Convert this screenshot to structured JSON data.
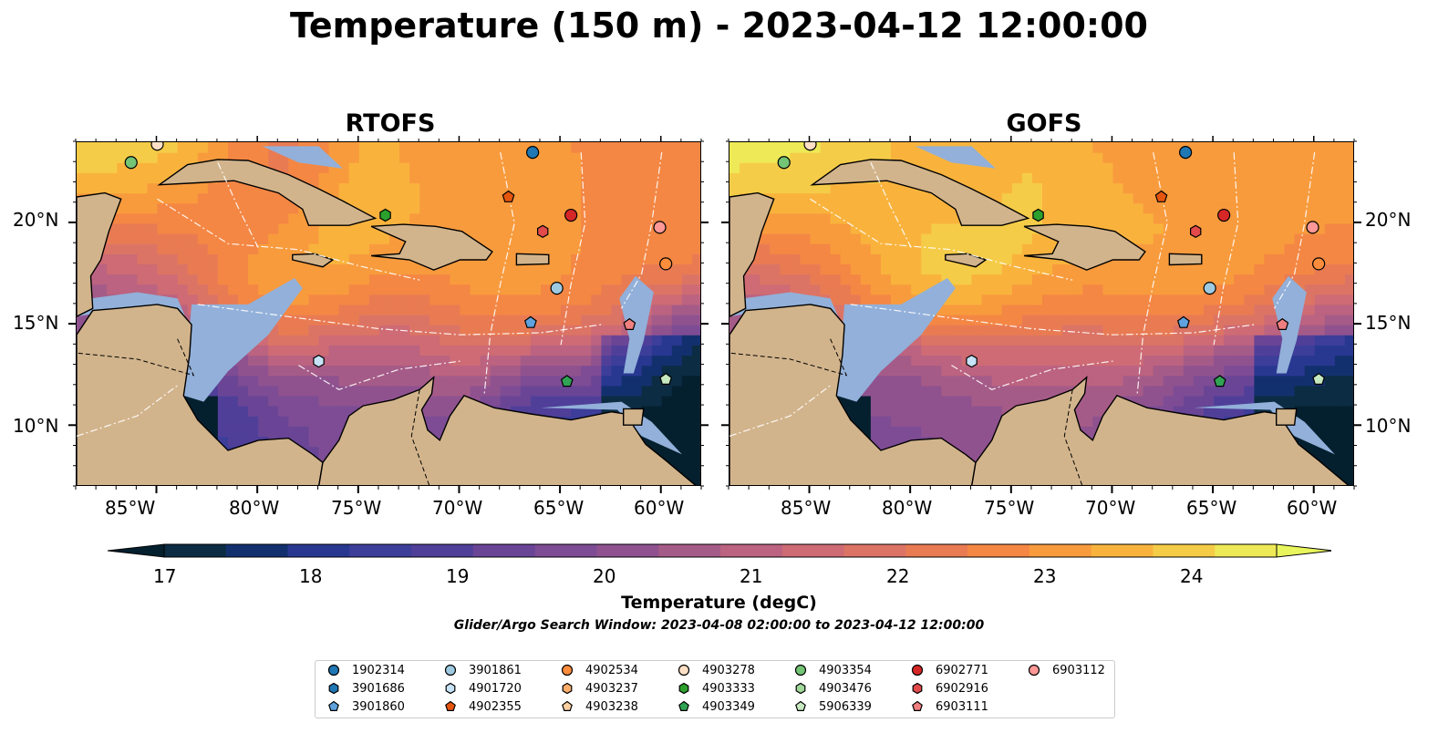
{
  "title": "Temperature (150 m) - 2023-04-12 12:00:00",
  "panels": [
    {
      "title": "RTOFS"
    },
    {
      "title": "GOFS"
    }
  ],
  "axes": {
    "lon_ticks": [
      "85°W",
      "80°W",
      "75°W",
      "70°W",
      "65°W",
      "60°W"
    ],
    "lat_ticks": [
      "20°N",
      "15°N",
      "10°N"
    ],
    "lon_range": [
      -89,
      -58
    ],
    "lat_range": [
      7,
      24
    ]
  },
  "colorbar": {
    "label": "Temperature (degC)",
    "ticks": [
      "17",
      "18",
      "19",
      "20",
      "21",
      "22",
      "23",
      "24"
    ],
    "range": [
      16.75,
      24.5
    ],
    "colors": [
      "#0c2c43",
      "#13306e",
      "#283891",
      "#3c3e9a",
      "#503f99",
      "#6a4596",
      "#7d4c94",
      "#8f528f",
      "#a55b88",
      "#bb6380",
      "#ce6b74",
      "#dc7465",
      "#e97b53",
      "#f48744",
      "#f89b3d",
      "#f9b33d",
      "#f5cc48",
      "#eee956"
    ],
    "under_color": "#04202f",
    "over_color": "#e8f55c"
  },
  "search_window": "Glider/Argo Search Window: 2023-04-08 02:00:00 to 2023-04-12 12:00:00",
  "legend": {
    "items": [
      {
        "label": "1902314",
        "color": "#1f77b4",
        "marker": "circle"
      },
      {
        "label": "3901686",
        "color": "#1f77b4",
        "marker": "hexagon"
      },
      {
        "label": "3901860",
        "color": "#5fa2dd",
        "marker": "pentagon"
      },
      {
        "label": "3901861",
        "color": "#9ecae1",
        "marker": "circle"
      },
      {
        "label": "4901720",
        "color": "#c6e3f7",
        "marker": "hexagon"
      },
      {
        "label": "4902355",
        "color": "#e6550d",
        "marker": "pentagon"
      },
      {
        "label": "4902534",
        "color": "#fd8d3c",
        "marker": "circle"
      },
      {
        "label": "4903237",
        "color": "#fdae6b",
        "marker": "hexagon"
      },
      {
        "label": "4903238",
        "color": "#fdd0a2",
        "marker": "pentagon"
      },
      {
        "label": "4903278",
        "color": "#fde0c5",
        "marker": "circle"
      },
      {
        "label": "4903333",
        "color": "#2ca02c",
        "marker": "hexagon"
      },
      {
        "label": "4903349",
        "color": "#31a354",
        "marker": "pentagon"
      },
      {
        "label": "4903354",
        "color": "#74c476",
        "marker": "circle"
      },
      {
        "label": "4903476",
        "color": "#a1d99b",
        "marker": "hexagon"
      },
      {
        "label": "5906339",
        "color": "#c7e9c0",
        "marker": "pentagon"
      },
      {
        "label": "6902771",
        "color": "#d62728",
        "marker": "circle"
      },
      {
        "label": "6902916",
        "color": "#e34a4a",
        "marker": "hexagon"
      },
      {
        "label": "6903111",
        "color": "#f07f7f",
        "marker": "pentagon"
      },
      {
        "label": "6903112",
        "color": "#ff9896",
        "marker": "circle"
      }
    ]
  },
  "floats": [
    {
      "id": "1902314",
      "lon": -66.4,
      "lat": 23.5
    },
    {
      "id": "3901861",
      "lon": -65.2,
      "lat": 16.8
    },
    {
      "id": "3901860",
      "lon": -66.5,
      "lat": 15.1
    },
    {
      "id": "4901720",
      "lon": -77.0,
      "lat": 13.2
    },
    {
      "id": "4902355",
      "lon": -67.6,
      "lat": 21.3
    },
    {
      "id": "4903278",
      "lon": -85.0,
      "lat": 23.9
    },
    {
      "id": "4903333",
      "lon": -73.7,
      "lat": 20.4
    },
    {
      "id": "4903349",
      "lon": -64.7,
      "lat": 12.2
    },
    {
      "id": "4903354",
      "lon": -86.3,
      "lat": 23.0
    },
    {
      "id": "5906339",
      "lon": -59.8,
      "lat": 12.3
    },
    {
      "id": "6902771",
      "lon": -64.5,
      "lat": 20.4
    },
    {
      "id": "6902916",
      "lon": -65.9,
      "lat": 19.6
    },
    {
      "id": "6903111",
      "lon": -61.6,
      "lat": 15.0
    },
    {
      "id": "6903112",
      "lon": -60.1,
      "lat": 19.8
    },
    {
      "id": "4902534",
      "lon": -59.8,
      "lat": 18.0
    }
  ]
}
